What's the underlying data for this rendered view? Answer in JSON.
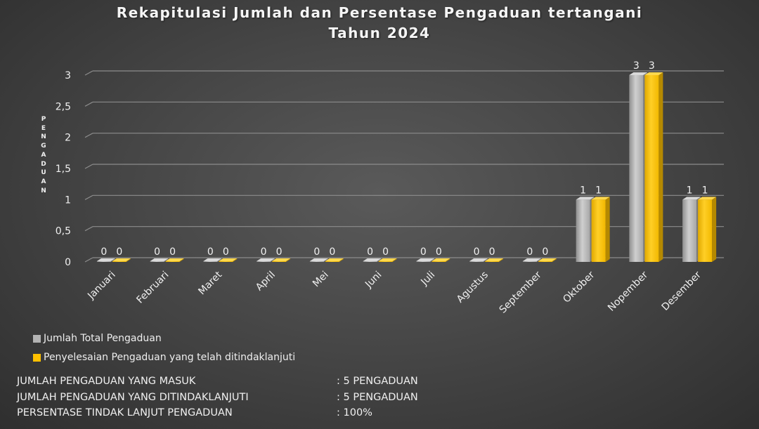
{
  "colors": {
    "series_total": "#b3b3b3",
    "series_done": "#ffc000",
    "gridline": "#8c8c8c",
    "text": "#f0f0f0"
  },
  "chart_data": {
    "type": "bar",
    "title": "Rekapitulasi Jumlah dan Persentase Pengaduan tertangani",
    "subtitle": "Tahun 2024",
    "ylabel": "PENGADUAN",
    "xlabel": "",
    "categories": [
      "Januari",
      "Februari",
      "Maret",
      "April",
      "Mei",
      "Juni",
      "Juli",
      "Agustus",
      "September",
      "Oktober",
      "Nopember",
      "Desember"
    ],
    "ylim": [
      0,
      3
    ],
    "yticks": [
      "0",
      "0,5",
      "1",
      "1,5",
      "2",
      "2,5",
      "3"
    ],
    "ytick_values": [
      0,
      0.5,
      1,
      1.5,
      2,
      2.5,
      3
    ],
    "grid": true,
    "legend_position": "bottom-left",
    "data_labels": true,
    "series": [
      {
        "name": "Jumlah Total Pengaduan",
        "values": [
          0,
          0,
          0,
          0,
          0,
          0,
          0,
          0,
          0,
          1,
          3,
          1
        ]
      },
      {
        "name": "Penyelesaian Pengaduan yang telah ditindaklanjuti",
        "values": [
          0,
          0,
          0,
          0,
          0,
          0,
          0,
          0,
          0,
          1,
          3,
          1
        ]
      }
    ]
  },
  "summary": [
    {
      "label": "JUMLAH PENGADUAN YANG MASUK",
      "value": ": 5 PENGADUAN"
    },
    {
      "label": "JUMLAH PENGADUAN YANG DITINDAKLANJUTI",
      "value": ": 5 PENGADUAN"
    },
    {
      "label": "PERSENTASE TINDAK LANJUT PENGADUAN",
      "value": ": 100%"
    }
  ]
}
